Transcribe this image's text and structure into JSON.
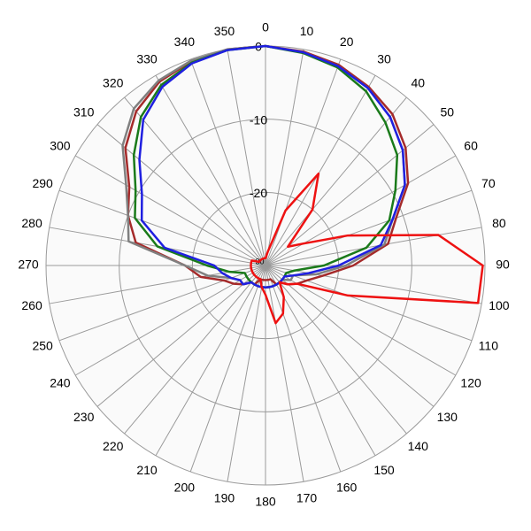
{
  "chart_data": {
    "type": "polar",
    "x": [
      0,
      10,
      20,
      30,
      40,
      50,
      60,
      70,
      80,
      90,
      100,
      110,
      120,
      130,
      140,
      150,
      160,
      170,
      180,
      190,
      200,
      210,
      220,
      230,
      240,
      250,
      260,
      270,
      280,
      290,
      300,
      310,
      320,
      330,
      340,
      350
    ],
    "xlim": [
      0,
      360
    ],
    "xticks": [
      0,
      10,
      20,
      30,
      40,
      50,
      60,
      70,
      80,
      90,
      100,
      110,
      120,
      130,
      140,
      150,
      160,
      170,
      180,
      190,
      200,
      210,
      220,
      230,
      240,
      250,
      260,
      270,
      280,
      290,
      300,
      310,
      320,
      330,
      340,
      350
    ],
    "ylim": [
      -30,
      0
    ],
    "yticks": [
      -30,
      -20,
      -10,
      0
    ],
    "grid": true,
    "series": [
      {
        "color": "#a52a2a",
        "values": [
          0,
          -0.3,
          -0.8,
          -1.8,
          -3,
          -5,
          -7.5,
          -11,
          -13,
          -18,
          -22,
          -24,
          -25,
          -26,
          -27,
          -27,
          -28,
          -28,
          -28,
          -28,
          -28,
          -27,
          -27,
          -26,
          -25,
          -24,
          -21,
          -19,
          -12,
          -10,
          -8.5,
          -5,
          -2.5,
          -1,
          -0.3,
          0
        ]
      },
      {
        "color": "#808080",
        "values": [
          0,
          -0.4,
          -1,
          -2,
          -3.5,
          -5.5,
          -8,
          -11.5,
          -13.5,
          -19,
          -23,
          -26,
          -26,
          -27,
          -27,
          -27,
          -27,
          -27,
          -27,
          -27,
          -27,
          -27,
          -27,
          -26,
          -26,
          -25,
          -22,
          -19,
          -11,
          -10,
          -8,
          -4.5,
          -2,
          -0.8,
          -0.2,
          0
        ]
      },
      {
        "color": "#1a7a1a",
        "values": [
          0,
          -0.5,
          -1.2,
          -2.5,
          -4.5,
          -6.5,
          -9.5,
          -12,
          -16,
          -22,
          -26,
          -27,
          -27,
          -27,
          -27,
          -27,
          -27,
          -27,
          -27,
          -27,
          -27,
          -27,
          -27,
          -27,
          -27,
          -27,
          -25,
          -22,
          -15,
          -11,
          -9.5,
          -6.5,
          -3.5,
          -1.5,
          -0.5,
          -0.1
        ]
      },
      {
        "color": "#1f1fe0",
        "values": [
          0,
          -0.4,
          -1,
          -2,
          -3.5,
          -5.5,
          -8,
          -11.5,
          -14,
          -20,
          -24,
          -26,
          -27,
          -27,
          -27,
          -27,
          -27,
          -27,
          -27,
          -27,
          -27,
          -27,
          -27,
          -26,
          -26,
          -25,
          -24,
          -23,
          -16,
          -12,
          -10.5,
          -7.5,
          -4,
          -1.8,
          -0.6,
          -0.1
        ]
      },
      {
        "color": "#ee1111",
        "values": [
          -29,
          -28,
          -22,
          -15.5,
          -20,
          -26,
          -24,
          -18,
          -6,
          -0.3,
          -0.5,
          -18,
          -25,
          -26,
          -27,
          -25,
          -23,
          -22,
          -26,
          -27,
          -28,
          -28,
          -28,
          -28,
          -28,
          -28,
          -28,
          -28,
          -28,
          -28,
          -29,
          -29,
          -29,
          -29,
          -29,
          -29
        ]
      }
    ]
  }
}
